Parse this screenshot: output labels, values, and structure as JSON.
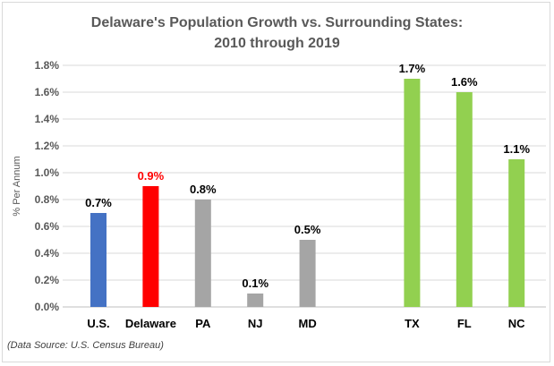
{
  "chart_data": {
    "type": "bar",
    "title_line1": "Delaware's Population Growth vs. Surrounding States:",
    "title_line2": "2010 through 2019",
    "ylabel": "% Per Annum",
    "xlabel": "",
    "ylim": [
      0,
      1.8
    ],
    "yticks": [
      "0.0%",
      "0.2%",
      "0.4%",
      "0.6%",
      "0.8%",
      "1.0%",
      "1.2%",
      "1.4%",
      "1.6%",
      "1.8%"
    ],
    "grid": true,
    "categories": [
      "U.S.",
      "Delaware",
      "PA",
      "NJ",
      "MD",
      "TX",
      "FL",
      "NC"
    ],
    "values": [
      0.7,
      0.9,
      0.8,
      0.1,
      0.5,
      1.7,
      1.6,
      1.1
    ],
    "data_labels": [
      "0.7%",
      "0.9%",
      "0.8%",
      "0.1%",
      "0.5%",
      "1.7%",
      "1.6%",
      "1.1%"
    ],
    "colors": [
      "#4472C4",
      "#FF0000",
      "#A5A5A5",
      "#A5A5A5",
      "#A5A5A5",
      "#92D050",
      "#92D050",
      "#92D050"
    ],
    "label_colors": [
      "#000000",
      "#FF0000",
      "#000000",
      "#000000",
      "#000000",
      "#000000",
      "#000000",
      "#000000"
    ]
  },
  "source": "(Data Source:  U.S. Census Bureau)"
}
